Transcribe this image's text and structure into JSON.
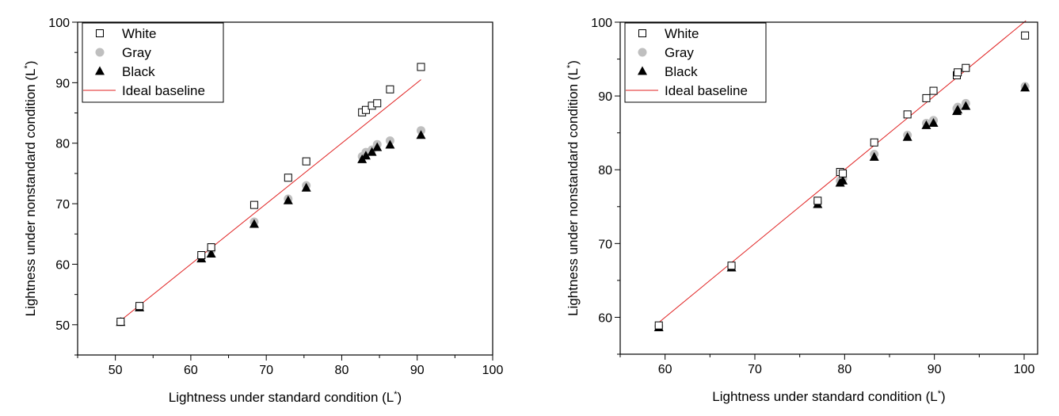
{
  "colors": {
    "white_marker_stroke": "#000000",
    "gray_marker_fill": "#bfbfbf",
    "black_marker_fill": "#000000",
    "baseline": "#e02020"
  },
  "chart_data": [
    {
      "type": "scatter",
      "xlabel": "Lightness under standard condition (L",
      "xlabel_sup": "*",
      "xlabel_end": ")",
      "ylabel": "Lightness under nonstandard condition (L",
      "ylabel_sup": "*",
      "ylabel_end": ")",
      "xlim": [
        45,
        100
      ],
      "ylim": [
        45,
        100
      ],
      "xticks": [
        50,
        60,
        70,
        80,
        90,
        100
      ],
      "yticks": [
        50,
        60,
        70,
        80,
        90,
        100
      ],
      "legend": {
        "position": "top-left",
        "labels": [
          "White",
          "Gray",
          "Black",
          "Ideal baseline"
        ]
      },
      "baseline": {
        "name": "Ideal baseline",
        "x": [
          50.7,
          90.5
        ],
        "y": [
          50.7,
          90.5
        ]
      },
      "series": [
        {
          "name": "White",
          "marker": "square-open",
          "x": [
            50.7,
            53.2,
            61.4,
            62.7,
            68.4,
            72.9,
            75.3,
            82.7,
            83.2,
            84.0,
            84.7,
            86.4,
            90.5
          ],
          "y": [
            50.5,
            53.1,
            61.5,
            62.8,
            69.8,
            74.3,
            77.0,
            85.1,
            85.5,
            86.2,
            86.6,
            88.9,
            92.6
          ]
        },
        {
          "name": "Gray",
          "marker": "circle",
          "x": [
            50.7,
            53.2,
            61.4,
            62.7,
            68.4,
            72.9,
            75.3,
            82.7,
            83.2,
            84.0,
            84.7,
            86.4,
            90.5
          ],
          "y": [
            50.5,
            53.0,
            61.1,
            62.3,
            67.0,
            70.8,
            73.0,
            77.8,
            78.5,
            78.9,
            79.8,
            80.4,
            82.1
          ]
        },
        {
          "name": "Black",
          "marker": "triangle",
          "x": [
            50.7,
            53.2,
            61.4,
            62.7,
            68.4,
            72.9,
            75.3,
            82.7,
            83.2,
            84.0,
            84.7,
            86.4,
            90.5
          ],
          "y": [
            50.4,
            52.8,
            60.9,
            61.7,
            66.6,
            70.5,
            72.6,
            77.3,
            77.9,
            78.5,
            79.3,
            79.7,
            81.3
          ]
        }
      ]
    },
    {
      "type": "scatter",
      "xlabel": "Lightness under standard condition (L",
      "xlabel_sup": "*",
      "xlabel_end": ")",
      "ylabel": "Lightness under nonstandard condition (L",
      "ylabel_sup": "*",
      "ylabel_end": ")",
      "xlim": [
        55,
        101.5
      ],
      "ylim": [
        55,
        100
      ],
      "xticks": [
        60,
        70,
        80,
        90,
        100
      ],
      "yticks": [
        60,
        70,
        80,
        90,
        100
      ],
      "legend": {
        "position": "top-left",
        "labels": [
          "White",
          "Gray",
          "Black",
          "Ideal baseline"
        ]
      },
      "baseline": {
        "name": "Ideal baseline",
        "x": [
          59.3,
          100.2
        ],
        "y": [
          59.3,
          100.2
        ]
      },
      "series": [
        {
          "name": "White",
          "marker": "square-open",
          "x": [
            59.3,
            67.4,
            77.0,
            79.5,
            79.8,
            83.3,
            87.0,
            89.1,
            89.9,
            92.5,
            92.6,
            93.5,
            100.1
          ],
          "y": [
            58.9,
            67.0,
            75.8,
            79.7,
            79.5,
            83.7,
            87.5,
            89.7,
            90.7,
            92.8,
            93.2,
            93.8,
            98.2
          ]
        },
        {
          "name": "Gray",
          "marker": "circle",
          "x": [
            59.3,
            67.4,
            77.0,
            79.5,
            79.8,
            83.3,
            87.0,
            89.1,
            89.9,
            92.5,
            92.6,
            93.5,
            100.1
          ],
          "y": [
            58.8,
            66.9,
            75.6,
            78.5,
            78.8,
            82.1,
            84.7,
            86.3,
            86.7,
            88.3,
            88.5,
            89.0,
            91.3
          ]
        },
        {
          "name": "Black",
          "marker": "triangle",
          "x": [
            59.3,
            67.4,
            77.0,
            79.5,
            79.8,
            83.3,
            87.0,
            89.1,
            89.9,
            92.5,
            92.6,
            93.5,
            100.1
          ],
          "y": [
            58.6,
            66.7,
            75.3,
            78.2,
            78.5,
            81.7,
            84.4,
            86.0,
            86.3,
            87.9,
            88.1,
            88.6,
            91.1
          ]
        }
      ]
    }
  ]
}
